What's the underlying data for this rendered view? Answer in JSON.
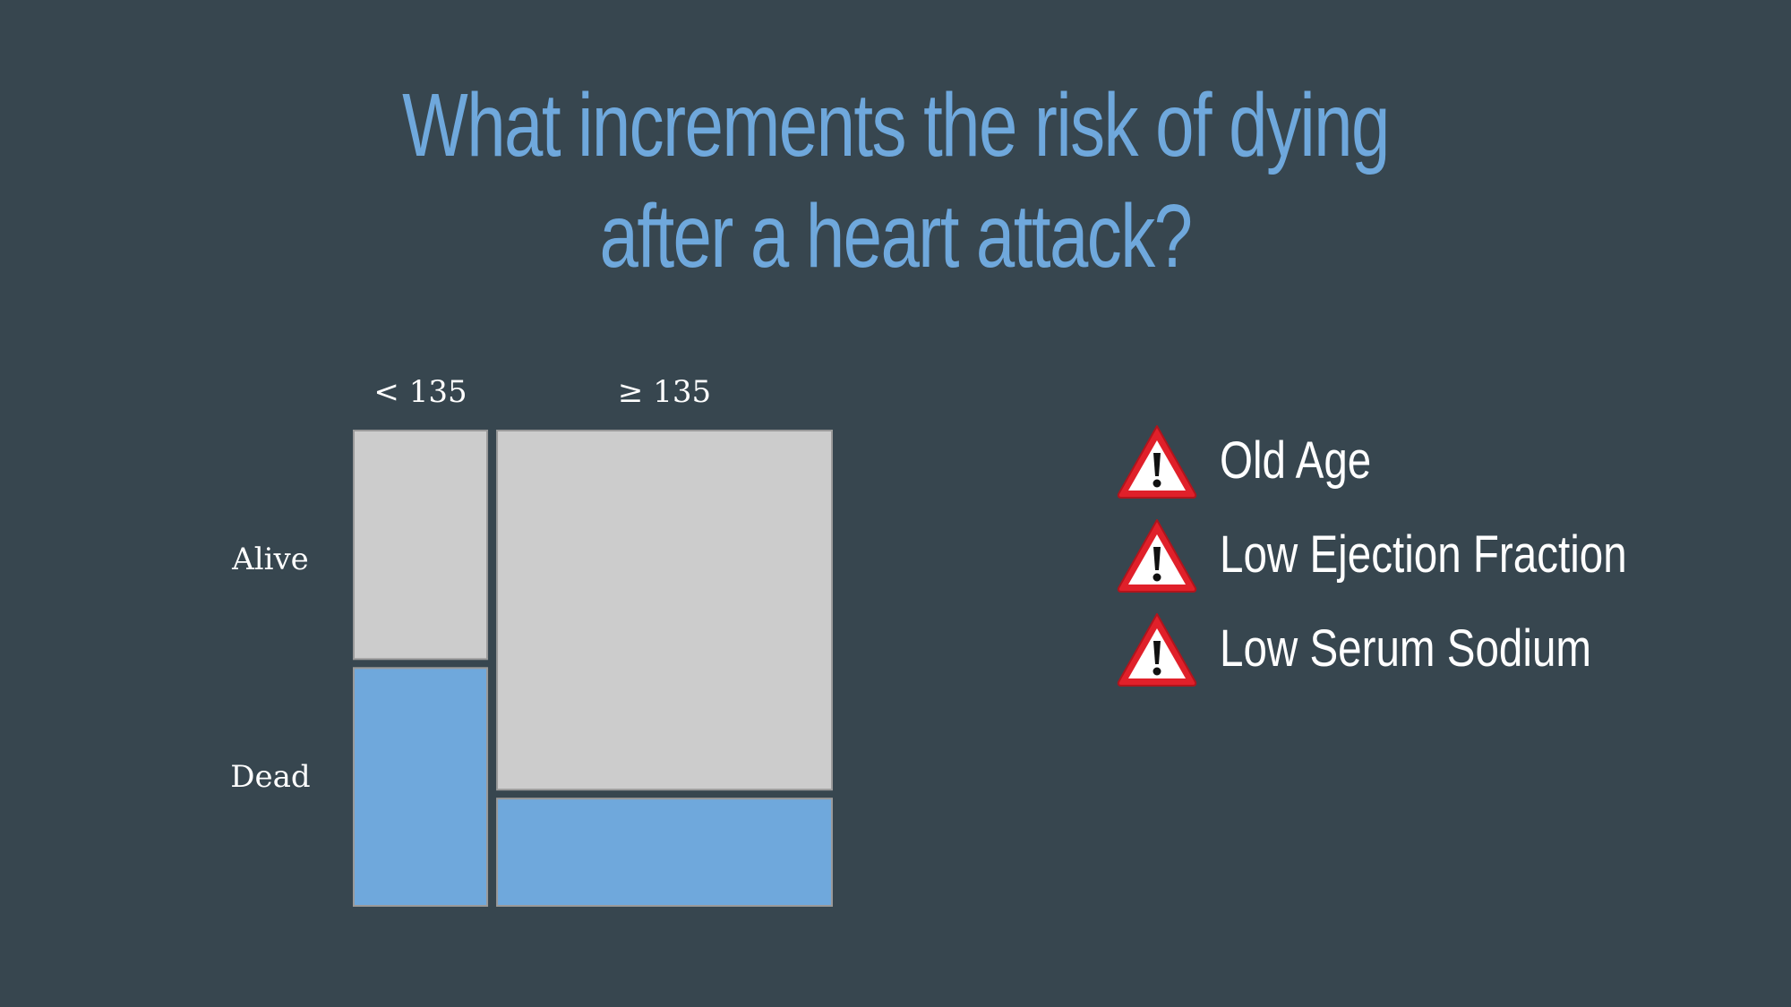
{
  "slide": {
    "title_line1": "What increments the risk of dying",
    "title_line2": "after a heart attack?",
    "title_color": "#6fa8dc",
    "background_color": "#37464f"
  },
  "chart_data": {
    "type": "mosaic",
    "title": "",
    "column_labels": [
      "< 135",
      "≥ 135"
    ],
    "row_labels": [
      "Alive",
      "Dead"
    ],
    "column_share": [
      0.285,
      0.715
    ],
    "cells": [
      {
        "column": "< 135",
        "row": "Alive",
        "share_within_column": 0.49
      },
      {
        "column": "< 135",
        "row": "Dead",
        "share_within_column": 0.51
      },
      {
        "column": "≥ 135",
        "row": "Alive",
        "share_within_column": 0.77
      },
      {
        "column": "≥ 135",
        "row": "Dead",
        "share_within_column": 0.23
      }
    ],
    "colors": {
      "Alive": "#cccccc",
      "Dead": "#6fa8dc"
    }
  },
  "risk_factors": {
    "icon": "warning-triangle-icon",
    "items": [
      {
        "label": "Old Age"
      },
      {
        "label": "Low Ejection Fraction"
      },
      {
        "label": "Low Serum Sodium"
      }
    ]
  }
}
